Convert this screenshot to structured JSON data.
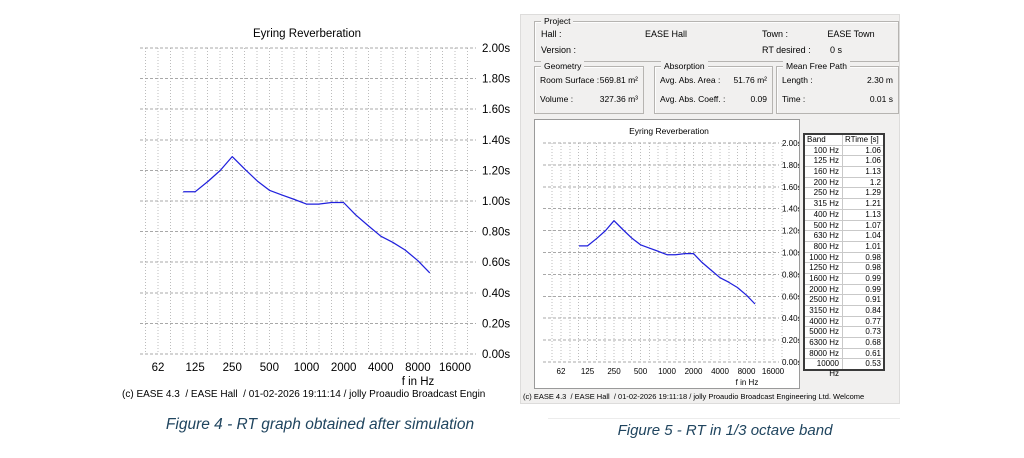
{
  "figure4": {
    "caption": "Figure 4 - RT graph obtained after simulation",
    "credit": "(c) EASE 4.3  / EASE Hall  / 01-02-2026 19:11:14 / jolly Proaudio Broadcast Engin"
  },
  "figure5": {
    "caption": "Figure 5 - RT in 1/3 octave band",
    "credit": "(c) EASE 4.3  / EASE Hall  / 01-02-2026 19:11:18 / jolly Proaudio Broadcast Engineering Ltd. Welcome",
    "project": {
      "legend": "Project",
      "hall_label": "Hall :",
      "hall_value": "EASE Hall",
      "town_label": "Town :",
      "town_value": "EASE Town",
      "version_label": "Version :",
      "version_value": "",
      "rt_desired_label": "RT desired :",
      "rt_desired_value": "0 s"
    },
    "geometry": {
      "legend": "Geometry",
      "rows": [
        {
          "label": "Room Surface :",
          "value": "569.81 m²"
        },
        {
          "label": "Volume :",
          "value": "327.36 m³"
        }
      ]
    },
    "absorption": {
      "legend": "Absorption",
      "rows": [
        {
          "label": "Avg. Abs. Area :",
          "value": "51.76 m²"
        },
        {
          "label": "Avg. Abs. Coeff. :",
          "value": "0.09"
        }
      ]
    },
    "mean_free_path": {
      "legend": "Mean Free Path",
      "rows": [
        {
          "label": "Length :",
          "value": "2.30 m"
        },
        {
          "label": "Time :",
          "value": "0.01 s"
        }
      ]
    },
    "table": {
      "headers": [
        "Band",
        "RTime [s]"
      ],
      "rows": [
        [
          "100 Hz",
          "1.06"
        ],
        [
          "125 Hz",
          "1.06"
        ],
        [
          "160 Hz",
          "1.13"
        ],
        [
          "200 Hz",
          "1.2"
        ],
        [
          "250 Hz",
          "1.29"
        ],
        [
          "315 Hz",
          "1.21"
        ],
        [
          "400 Hz",
          "1.13"
        ],
        [
          "500 Hz",
          "1.07"
        ],
        [
          "630 Hz",
          "1.04"
        ],
        [
          "800 Hz",
          "1.01"
        ],
        [
          "1000 Hz",
          "0.98"
        ],
        [
          "1250 Hz",
          "0.98"
        ],
        [
          "1600 Hz",
          "0.99"
        ],
        [
          "2000 Hz",
          "0.99"
        ],
        [
          "2500 Hz",
          "0.91"
        ],
        [
          "3150 Hz",
          "0.84"
        ],
        [
          "4000 Hz",
          "0.77"
        ],
        [
          "5000 Hz",
          "0.73"
        ],
        [
          "6300 Hz",
          "0.68"
        ],
        [
          "8000 Hz",
          "0.61"
        ],
        [
          "10000 Hz",
          "0.53"
        ]
      ]
    }
  },
  "chart_data": [
    {
      "id": "figure4",
      "type": "line",
      "title": "Eyring Reverberation",
      "xlabel": "f in Hz",
      "ylabel": "RT in s",
      "x_scale": "log2",
      "grid": true,
      "legend": "none",
      "x_hz": [
        100,
        125,
        160,
        200,
        250,
        315,
        400,
        500,
        630,
        800,
        1000,
        1250,
        1600,
        2000,
        2500,
        3150,
        4000,
        5000,
        6300,
        8000,
        10000
      ],
      "rt_s": [
        1.06,
        1.06,
        1.13,
        1.2,
        1.29,
        1.21,
        1.13,
        1.07,
        1.04,
        1.01,
        0.98,
        0.98,
        0.99,
        0.99,
        0.91,
        0.84,
        0.77,
        0.73,
        0.68,
        0.61,
        0.53
      ],
      "x_tick_hz": [
        62.5,
        125,
        250,
        500,
        1000,
        2000,
        4000,
        8000,
        16000
      ],
      "x_tick_labels": [
        "62",
        "125",
        "250",
        "500",
        "1000",
        "2000",
        "4000",
        "8000",
        "16000"
      ],
      "y_tick_labels": [
        "2.00s",
        "1.80s",
        "1.60s",
        "1.40s",
        "1.20s",
        "1.00s",
        "0.80s",
        "0.60s",
        "0.40s",
        "0.20s",
        "0.00s"
      ],
      "ylim": [
        0,
        2
      ],
      "line_color": "#2121dd"
    },
    {
      "id": "figure5",
      "type": "line",
      "title": "Eyring Reverberation",
      "xlabel": "f in Hz",
      "ylabel": "RT in s",
      "x_scale": "log2",
      "grid": true,
      "legend": "none",
      "x_hz": [
        100,
        125,
        160,
        200,
        250,
        315,
        400,
        500,
        630,
        800,
        1000,
        1250,
        1600,
        2000,
        2500,
        3150,
        4000,
        5000,
        6300,
        8000,
        10000
      ],
      "rt_s": [
        1.06,
        1.06,
        1.13,
        1.2,
        1.29,
        1.21,
        1.13,
        1.07,
        1.04,
        1.01,
        0.98,
        0.98,
        0.99,
        0.99,
        0.91,
        0.84,
        0.77,
        0.73,
        0.68,
        0.61,
        0.53
      ],
      "x_tick_hz": [
        62.5,
        125,
        250,
        500,
        1000,
        2000,
        4000,
        8000,
        16000
      ],
      "x_tick_labels": [
        "62",
        "125",
        "250",
        "500",
        "1000",
        "2000",
        "4000",
        "8000",
        "16000"
      ],
      "y_tick_labels": [
        "2.00s",
        "1.80s",
        "1.60s",
        "1.40s",
        "1.20s",
        "1.00s",
        "0.80s",
        "0.60s",
        "0.40s",
        "0.20s",
        "0.00s"
      ],
      "ylim": [
        0,
        2
      ],
      "line_color": "#2121dd"
    }
  ]
}
